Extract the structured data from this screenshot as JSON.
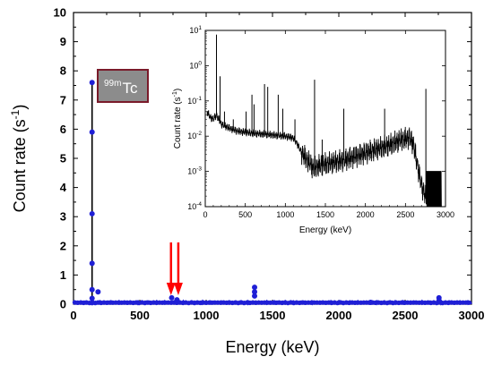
{
  "chart_data": [
    {
      "type": "line",
      "xlabel": "Energy (keV)",
      "ylabel": "Count rate (s",
      "ylabel_sup": "-1",
      "ylabel_tail": ")",
      "xlim": [
        0,
        3000
      ],
      "ylim": [
        0,
        10
      ],
      "x_ticks": [
        "0",
        "500",
        "1000",
        "1500",
        "2000",
        "2500",
        "3000"
      ],
      "y_ticks": [
        "0",
        "1",
        "2",
        "3",
        "4",
        "5",
        "6",
        "7",
        "8",
        "9",
        "10"
      ],
      "series_color": "#1f1fd6",
      "baseline_level": 0.04,
      "peak_x": 140,
      "peak_points": [
        0.05,
        0.2,
        0.5,
        1.4,
        3.1,
        5.9,
        7.6
      ],
      "other_peaks": [
        {
          "x": 185,
          "y": 0.42
        },
        {
          "x": 740,
          "y": 0.22
        },
        {
          "x": 780,
          "y": 0.15
        },
        {
          "x": 1365,
          "y": 0.58
        },
        {
          "x": 1365,
          "y": 0.42
        },
        {
          "x": 1365,
          "y": 0.28
        },
        {
          "x": 2240,
          "y": 0.06
        },
        {
          "x": 2755,
          "y": 0.22
        },
        {
          "x": 2755,
          "y": 0.12
        }
      ],
      "annotation_label": "Tc",
      "annotation_sup": "99m",
      "arrow_color": "#ff0000",
      "arrows_x": [
        735,
        790
      ]
    },
    {
      "type": "line",
      "xlabel": "Energy (keV)",
      "ylabel": "Count rate (s",
      "ylabel_sup": "-1",
      "ylabel_tail": ")",
      "xlim": [
        0,
        3000
      ],
      "ylim": [
        0.0001,
        10
      ],
      "yscale": "log",
      "x_ticks": [
        "0",
        "500",
        "1000",
        "1500",
        "2000",
        "2500",
        "3000"
      ],
      "y_tick_exponents": [
        "1",
        "0",
        "-1",
        "-2",
        "-3",
        "-4"
      ],
      "series_color": "#000000",
      "continuum": [
        [
          20,
          0.05
        ],
        [
          60,
          0.035
        ],
        [
          100,
          0.03
        ],
        [
          140,
          0.04
        ],
        [
          200,
          0.022
        ],
        [
          300,
          0.017
        ],
        [
          400,
          0.014
        ],
        [
          500,
          0.013
        ],
        [
          600,
          0.012
        ],
        [
          700,
          0.0115
        ],
        [
          800,
          0.011
        ],
        [
          900,
          0.0105
        ],
        [
          1000,
          0.01
        ],
        [
          1100,
          0.009
        ],
        [
          1150,
          0.006
        ],
        [
          1200,
          0.0035
        ],
        [
          1250,
          0.0025
        ],
        [
          1300,
          0.0018
        ],
        [
          1350,
          0.0012
        ],
        [
          1400,
          0.0014
        ],
        [
          1500,
          0.0016
        ],
        [
          1700,
          0.002
        ],
        [
          1900,
          0.0028
        ],
        [
          2100,
          0.004
        ],
        [
          2300,
          0.0055
        ],
        [
          2450,
          0.008
        ],
        [
          2550,
          0.009
        ],
        [
          2600,
          0.006
        ],
        [
          2650,
          0.0015
        ],
        [
          2700,
          0.0004
        ],
        [
          2750,
          0.0002
        ],
        [
          2800,
          0.0001
        ],
        [
          2850,
          0.0001
        ],
        [
          2950,
          0.0001
        ]
      ],
      "lines": [
        [
          140,
          7.6
        ],
        [
          185,
          0.5
        ],
        [
          240,
          0.05
        ],
        [
          350,
          0.03
        ],
        [
          510,
          0.05
        ],
        [
          583,
          0.15
        ],
        [
          609,
          0.08
        ],
        [
          740,
          0.3
        ],
        [
          780,
          0.25
        ],
        [
          911,
          0.15
        ],
        [
          968,
          0.06
        ],
        [
          1120,
          0.03
        ],
        [
          1365,
          0.4
        ],
        [
          1460,
          0.008
        ],
        [
          1730,
          0.06
        ],
        [
          2240,
          0.06
        ],
        [
          2755,
          0.22
        ]
      ]
    }
  ]
}
